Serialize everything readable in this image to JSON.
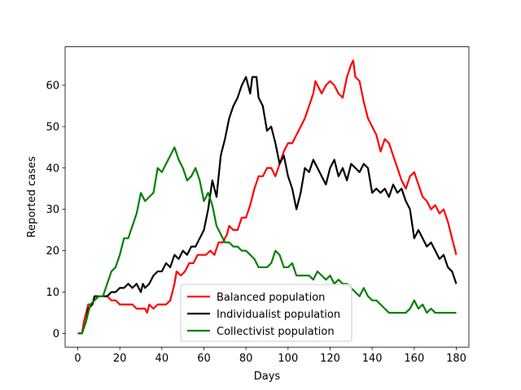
{
  "chart_data": {
    "type": "line",
    "title": "",
    "xlabel": "Days",
    "ylabel": "Reported cases",
    "xlim": [
      -6,
      186
    ],
    "ylim": [
      -3.3,
      69.3
    ],
    "xticks": [
      0,
      20,
      40,
      60,
      80,
      100,
      120,
      140,
      160,
      180
    ],
    "yticks": [
      0,
      10,
      20,
      30,
      40,
      50,
      60
    ],
    "grid": false,
    "legend_position": "lower-center",
    "series": [
      {
        "name": "Balanced population",
        "color": "#ff0000",
        "points": [
          [
            0,
            0
          ],
          [
            2,
            0
          ],
          [
            3,
            3
          ],
          [
            4,
            5
          ],
          [
            5,
            7
          ],
          [
            7,
            7
          ],
          [
            8,
            9
          ],
          [
            10,
            9
          ],
          [
            12,
            9
          ],
          [
            14,
            9
          ],
          [
            16,
            8
          ],
          [
            18,
            8
          ],
          [
            20,
            7
          ],
          [
            22,
            7
          ],
          [
            24,
            7
          ],
          [
            26,
            7
          ],
          [
            28,
            6
          ],
          [
            30,
            6
          ],
          [
            32,
            6
          ],
          [
            33,
            5
          ],
          [
            34,
            7
          ],
          [
            36,
            6
          ],
          [
            38,
            7
          ],
          [
            40,
            7
          ],
          [
            42,
            7
          ],
          [
            44,
            8
          ],
          [
            46,
            12
          ],
          [
            47,
            15
          ],
          [
            49,
            14
          ],
          [
            51,
            15
          ],
          [
            53,
            17
          ],
          [
            55,
            17
          ],
          [
            57,
            19
          ],
          [
            59,
            19
          ],
          [
            61,
            19
          ],
          [
            63,
            20
          ],
          [
            65,
            19
          ],
          [
            67,
            22
          ],
          [
            69,
            22
          ],
          [
            71,
            24
          ],
          [
            72,
            26
          ],
          [
            74,
            25
          ],
          [
            76,
            25
          ],
          [
            78,
            28
          ],
          [
            80,
            28
          ],
          [
            82,
            31
          ],
          [
            84,
            35
          ],
          [
            86,
            38
          ],
          [
            88,
            38
          ],
          [
            90,
            40
          ],
          [
            92,
            40
          ],
          [
            94,
            38
          ],
          [
            96,
            41
          ],
          [
            98,
            44
          ],
          [
            100,
            46
          ],
          [
            102,
            46
          ],
          [
            104,
            48
          ],
          [
            106,
            50
          ],
          [
            108,
            52
          ],
          [
            110,
            55
          ],
          [
            112,
            58
          ],
          [
            113,
            61
          ],
          [
            114,
            60
          ],
          [
            116,
            58
          ],
          [
            118,
            60
          ],
          [
            120,
            61
          ],
          [
            122,
            60
          ],
          [
            124,
            58
          ],
          [
            126,
            57
          ],
          [
            128,
            62
          ],
          [
            130,
            65
          ],
          [
            131,
            66
          ],
          [
            132,
            62
          ],
          [
            134,
            61
          ],
          [
            136,
            56
          ],
          [
            138,
            52
          ],
          [
            140,
            50
          ],
          [
            142,
            48
          ],
          [
            144,
            44
          ],
          [
            146,
            47
          ],
          [
            148,
            46
          ],
          [
            150,
            43
          ],
          [
            152,
            40
          ],
          [
            154,
            37
          ],
          [
            156,
            35
          ],
          [
            158,
            38
          ],
          [
            160,
            39
          ],
          [
            162,
            36
          ],
          [
            164,
            33
          ],
          [
            166,
            32
          ],
          [
            168,
            30
          ],
          [
            170,
            31
          ],
          [
            172,
            29
          ],
          [
            174,
            30
          ],
          [
            176,
            27
          ],
          [
            178,
            23
          ],
          [
            180,
            19
          ]
        ]
      },
      {
        "name": "Individualist population",
        "color": "#000000",
        "points": [
          [
            0,
            0
          ],
          [
            2,
            0
          ],
          [
            4,
            3
          ],
          [
            5,
            6
          ],
          [
            7,
            7
          ],
          [
            8,
            9
          ],
          [
            10,
            9
          ],
          [
            12,
            9
          ],
          [
            14,
            9
          ],
          [
            16,
            10
          ],
          [
            18,
            10
          ],
          [
            20,
            11
          ],
          [
            22,
            11
          ],
          [
            24,
            12
          ],
          [
            26,
            11
          ],
          [
            28,
            12
          ],
          [
            30,
            10
          ],
          [
            31,
            12
          ],
          [
            32,
            11
          ],
          [
            34,
            12
          ],
          [
            36,
            14
          ],
          [
            38,
            15
          ],
          [
            40,
            15
          ],
          [
            42,
            17
          ],
          [
            44,
            16
          ],
          [
            46,
            19
          ],
          [
            48,
            18
          ],
          [
            50,
            20
          ],
          [
            52,
            19
          ],
          [
            54,
            21
          ],
          [
            56,
            21
          ],
          [
            58,
            23
          ],
          [
            60,
            25
          ],
          [
            62,
            30
          ],
          [
            64,
            37
          ],
          [
            66,
            33
          ],
          [
            68,
            43
          ],
          [
            70,
            47
          ],
          [
            72,
            52
          ],
          [
            74,
            55
          ],
          [
            76,
            57
          ],
          [
            78,
            60
          ],
          [
            80,
            62
          ],
          [
            82,
            58
          ],
          [
            83,
            62
          ],
          [
            85,
            62
          ],
          [
            86,
            57
          ],
          [
            88,
            55
          ],
          [
            90,
            49
          ],
          [
            92,
            50
          ],
          [
            94,
            46
          ],
          [
            96,
            41
          ],
          [
            98,
            43
          ],
          [
            100,
            38
          ],
          [
            102,
            35
          ],
          [
            104,
            30
          ],
          [
            106,
            34
          ],
          [
            108,
            40
          ],
          [
            110,
            39
          ],
          [
            112,
            42
          ],
          [
            114,
            40
          ],
          [
            116,
            38
          ],
          [
            118,
            36
          ],
          [
            120,
            40
          ],
          [
            122,
            42
          ],
          [
            124,
            38
          ],
          [
            126,
            40
          ],
          [
            128,
            37
          ],
          [
            130,
            41
          ],
          [
            132,
            40
          ],
          [
            134,
            39
          ],
          [
            136,
            41
          ],
          [
            138,
            40
          ],
          [
            140,
            34
          ],
          [
            142,
            35
          ],
          [
            144,
            34
          ],
          [
            146,
            35
          ],
          [
            148,
            33
          ],
          [
            150,
            36
          ],
          [
            152,
            34
          ],
          [
            154,
            35
          ],
          [
            156,
            32
          ],
          [
            158,
            30
          ],
          [
            160,
            23
          ],
          [
            162,
            25
          ],
          [
            164,
            23
          ],
          [
            166,
            21
          ],
          [
            168,
            22
          ],
          [
            170,
            20
          ],
          [
            172,
            18
          ],
          [
            174,
            19
          ],
          [
            176,
            16
          ],
          [
            178,
            15
          ],
          [
            180,
            12
          ]
        ]
      },
      {
        "name": "Collectivist population",
        "color": "#008000",
        "points": [
          [
            0,
            0
          ],
          [
            2,
            0
          ],
          [
            4,
            3
          ],
          [
            6,
            7
          ],
          [
            8,
            8
          ],
          [
            10,
            9
          ],
          [
            12,
            9
          ],
          [
            14,
            12
          ],
          [
            16,
            15
          ],
          [
            18,
            16
          ],
          [
            20,
            19
          ],
          [
            22,
            23
          ],
          [
            24,
            23
          ],
          [
            26,
            26
          ],
          [
            28,
            29
          ],
          [
            30,
            34
          ],
          [
            32,
            32
          ],
          [
            34,
            33
          ],
          [
            36,
            34
          ],
          [
            38,
            40
          ],
          [
            40,
            39
          ],
          [
            42,
            41
          ],
          [
            44,
            43
          ],
          [
            46,
            45
          ],
          [
            48,
            42
          ],
          [
            50,
            40
          ],
          [
            52,
            37
          ],
          [
            54,
            38
          ],
          [
            56,
            40
          ],
          [
            58,
            37
          ],
          [
            60,
            32
          ],
          [
            62,
            34
          ],
          [
            64,
            31
          ],
          [
            66,
            26
          ],
          [
            68,
            24
          ],
          [
            70,
            22
          ],
          [
            72,
            22
          ],
          [
            74,
            21
          ],
          [
            76,
            21
          ],
          [
            78,
            20
          ],
          [
            80,
            20
          ],
          [
            82,
            19
          ],
          [
            84,
            18
          ],
          [
            86,
            16
          ],
          [
            88,
            16
          ],
          [
            90,
            16
          ],
          [
            92,
            17
          ],
          [
            94,
            20
          ],
          [
            96,
            19
          ],
          [
            98,
            16
          ],
          [
            100,
            16
          ],
          [
            102,
            17
          ],
          [
            104,
            14
          ],
          [
            106,
            14
          ],
          [
            108,
            14
          ],
          [
            110,
            14
          ],
          [
            112,
            13
          ],
          [
            114,
            15
          ],
          [
            116,
            14
          ],
          [
            118,
            13
          ],
          [
            120,
            14
          ],
          [
            122,
            12
          ],
          [
            124,
            13
          ],
          [
            126,
            12
          ],
          [
            128,
            12
          ],
          [
            130,
            11
          ],
          [
            132,
            10
          ],
          [
            134,
            9
          ],
          [
            136,
            11
          ],
          [
            138,
            9
          ],
          [
            140,
            8
          ],
          [
            142,
            8
          ],
          [
            144,
            7
          ],
          [
            146,
            6
          ],
          [
            148,
            5
          ],
          [
            150,
            5
          ],
          [
            152,
            5
          ],
          [
            154,
            5
          ],
          [
            156,
            5
          ],
          [
            158,
            6
          ],
          [
            160,
            8
          ],
          [
            162,
            6
          ],
          [
            164,
            7
          ],
          [
            166,
            5
          ],
          [
            168,
            6
          ],
          [
            170,
            5
          ],
          [
            172,
            5
          ],
          [
            174,
            5
          ],
          [
            176,
            5
          ],
          [
            178,
            5
          ],
          [
            180,
            5
          ]
        ]
      }
    ]
  }
}
